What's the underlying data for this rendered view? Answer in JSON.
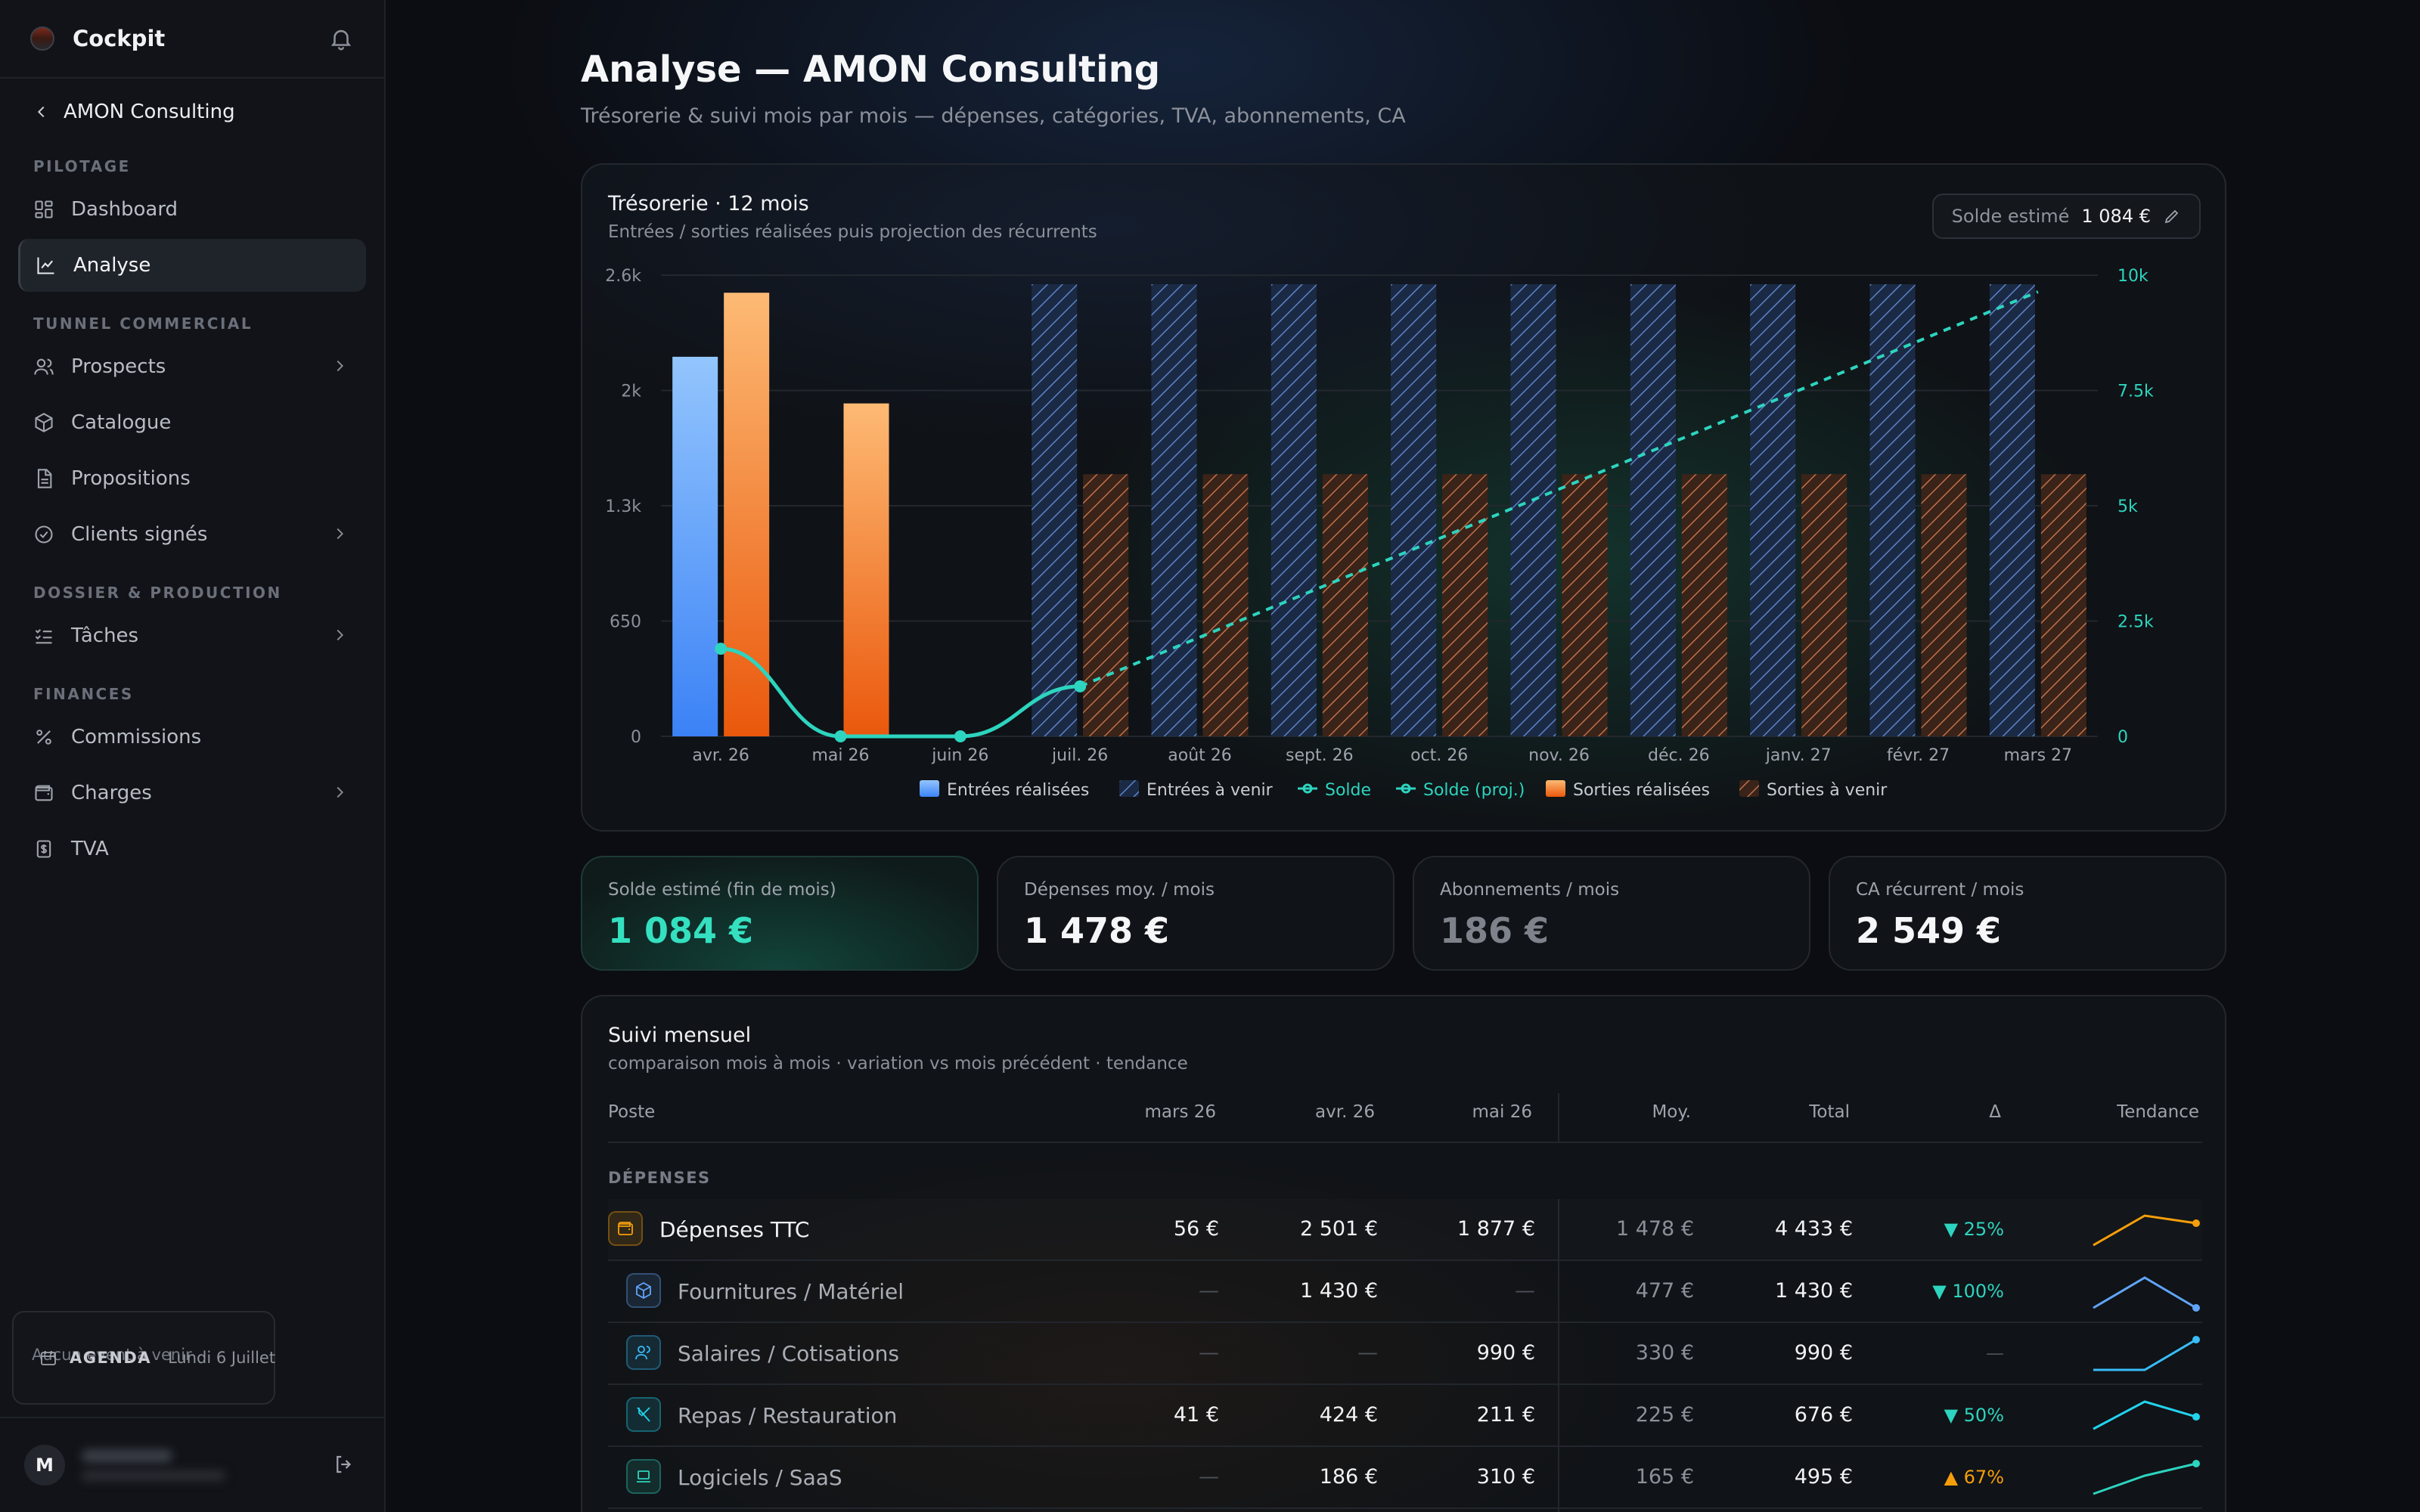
{
  "sidebar": {
    "brand": "Cockpit",
    "client": "AMON Consulting",
    "sections": {
      "pilotage": "PILOTAGE",
      "tunnel": "TUNNEL COMMERCIAL",
      "dossier": "DOSSIER & PRODUCTION",
      "finances": "FINANCES"
    },
    "items": {
      "dashboard": "Dashboard",
      "analyse": "Analyse",
      "prospects": "Prospects",
      "catalogue": "Catalogue",
      "propositions": "Propositions",
      "clients": "Clients signés",
      "taches": "Tâches",
      "commissions": "Commissions",
      "charges": "Charges",
      "tva": "TVA"
    },
    "agenda": {
      "label": "AGENDA",
      "date": "Lundi 6 Juillet",
      "empty": "Aucun event à venir"
    },
    "user": {
      "initial": "M"
    }
  },
  "page": {
    "title": "Analyse — AMON Consulting",
    "subtitle": "Trésorerie & suivi mois par mois — dépenses, catégories, TVA, abonnements, CA"
  },
  "chart": {
    "title": "Trésorerie · 12 mois",
    "subtitle": "Entrées / sorties réalisées puis projection des récurrents",
    "solde_label": "Solde estimé",
    "solde_value": "1 084 €"
  },
  "chart_data": {
    "type": "bar",
    "categories": [
      "avr. 26",
      "mai 26",
      "juin 26",
      "juil. 26",
      "août 26",
      "sept. 26",
      "oct. 26",
      "nov. 26",
      "déc. 26",
      "janv. 27",
      "févr. 27",
      "mars 27"
    ],
    "y_left_ticks": [
      "0",
      "650",
      "1.3k",
      "2k",
      "2.6k"
    ],
    "y_right_ticks": [
      "0",
      "2.5k",
      "5k",
      "7.5k",
      "10k"
    ],
    "ylim_left": [
      0,
      2600
    ],
    "ylim_right": [
      0,
      10000
    ],
    "colors": {
      "entrees": "#3b82f6",
      "sorties": "#f97316",
      "solde": "#2dd4bf"
    },
    "series": [
      {
        "name": "Entrées réalisées",
        "axis": "left",
        "values": [
          2140,
          0,
          0,
          null,
          null,
          null,
          null,
          null,
          null,
          null,
          null,
          null
        ]
      },
      {
        "name": "Entrées à venir",
        "axis": "left",
        "values": [
          null,
          null,
          null,
          2549,
          2549,
          2549,
          2549,
          2549,
          2549,
          2549,
          2549,
          2549
        ]
      },
      {
        "name": "Solde",
        "axis": "right",
        "values": [
          1900,
          0,
          0,
          1084,
          null,
          null,
          null,
          null,
          null,
          null,
          null,
          null
        ]
      },
      {
        "name": "Solde (proj.)",
        "axis": "right",
        "values": [
          null,
          null,
          null,
          1084,
          2150,
          3220,
          4290,
          5360,
          6430,
          7500,
          8570,
          9640
        ]
      },
      {
        "name": "Sorties réalisées",
        "axis": "left",
        "values": [
          2501,
          1877,
          0,
          null,
          null,
          null,
          null,
          null,
          null,
          null,
          null,
          null
        ]
      },
      {
        "name": "Sorties à venir",
        "axis": "left",
        "values": [
          null,
          null,
          null,
          1478,
          1478,
          1478,
          1478,
          1478,
          1478,
          1478,
          1478,
          1478
        ]
      }
    ]
  },
  "stats": [
    {
      "label": "Solde estimé (fin de mois)",
      "value": "1 084 €"
    },
    {
      "label": "Dépenses moy. / mois",
      "value": "1 478 €"
    },
    {
      "label": "Abonnements / mois",
      "value": "186 €"
    },
    {
      "label": "CA récurrent / mois",
      "value": "2 549 €"
    }
  ],
  "table": {
    "title": "Suivi mensuel",
    "subtitle": "comparaison mois à mois · variation vs mois précédent · tendance",
    "headers": {
      "poste": "Poste",
      "m1": "mars 26",
      "m2": "avr. 26",
      "m3": "mai 26",
      "moy": "Moy.",
      "total": "Total",
      "delta": "Δ",
      "trend": "Tendance"
    },
    "group": "DÉPENSES",
    "rows": [
      {
        "name": "Dépenses TTC",
        "m1": "56 €",
        "m2": "2 501 €",
        "m3": "1 877 €",
        "moy": "1 478 €",
        "total": "4 433 €",
        "delta": "25%",
        "dir": "down",
        "icon": "wallet-icon",
        "color": "#f59e0b",
        "trend": [
          56,
          2501,
          1877
        ]
      },
      {
        "name": "Fournitures / Matériel",
        "m1": "—",
        "m2": "1 430 €",
        "m3": "—",
        "moy": "477 €",
        "total": "1 430 €",
        "delta": "100%",
        "dir": "down",
        "icon": "box-icon",
        "color": "#60a5fa",
        "trend": [
          0,
          1430,
          0
        ]
      },
      {
        "name": "Salaires / Cotisations",
        "m1": "—",
        "m2": "—",
        "m3": "990 €",
        "moy": "330 €",
        "total": "990 €",
        "delta": "—",
        "dir": "none",
        "icon": "users-icon",
        "color": "#38bdf8",
        "trend": [
          0,
          0,
          990
        ]
      },
      {
        "name": "Repas / Restauration",
        "m1": "41 €",
        "m2": "424 €",
        "m3": "211 €",
        "moy": "225 €",
        "total": "676 €",
        "delta": "50%",
        "dir": "down",
        "icon": "utensils-icon",
        "color": "#22d3ee",
        "trend": [
          41,
          424,
          211
        ]
      },
      {
        "name": "Logiciels / SaaS",
        "m1": "—",
        "m2": "186 €",
        "m3": "310 €",
        "moy": "165 €",
        "total": "495 €",
        "delta": "67%",
        "dir": "up",
        "icon": "laptop-icon",
        "color": "#2dd4bf",
        "trend": [
          0,
          186,
          310
        ]
      }
    ]
  }
}
